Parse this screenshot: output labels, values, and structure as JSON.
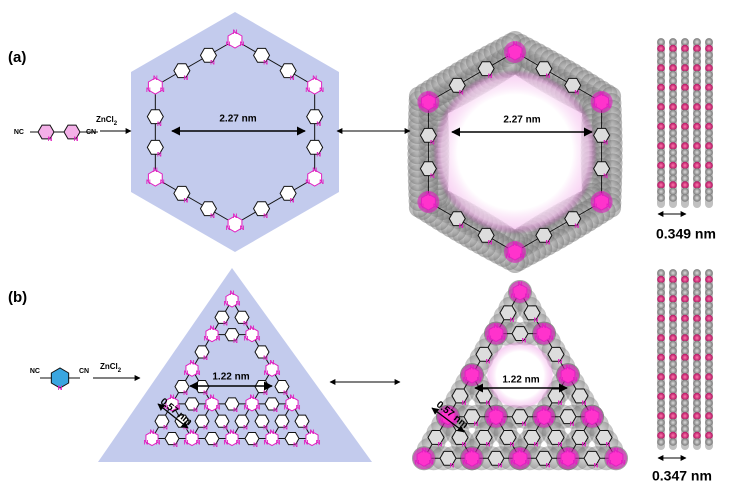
{
  "atom_label": "N",
  "panel_a": {
    "label": "(a)",
    "monomer_left": "NC",
    "monomer_right": "CN",
    "reagent": "ZnCl",
    "reagent_sub": "2",
    "pore_size": "2.27 nm",
    "pore_size_model": "2.27 nm",
    "stacking": "0.349 nm"
  },
  "panel_b": {
    "label": "(b)",
    "monomer_left": "NC",
    "monomer_right": "CN",
    "reagent": "ZnCl",
    "reagent_sub": "2",
    "pore_size": "1.22 nm",
    "small_pore": "0.57 nm",
    "pore_size_model": "1.22 nm",
    "small_pore_model": "0.57 nm",
    "stacking": "0.347 nm"
  }
}
